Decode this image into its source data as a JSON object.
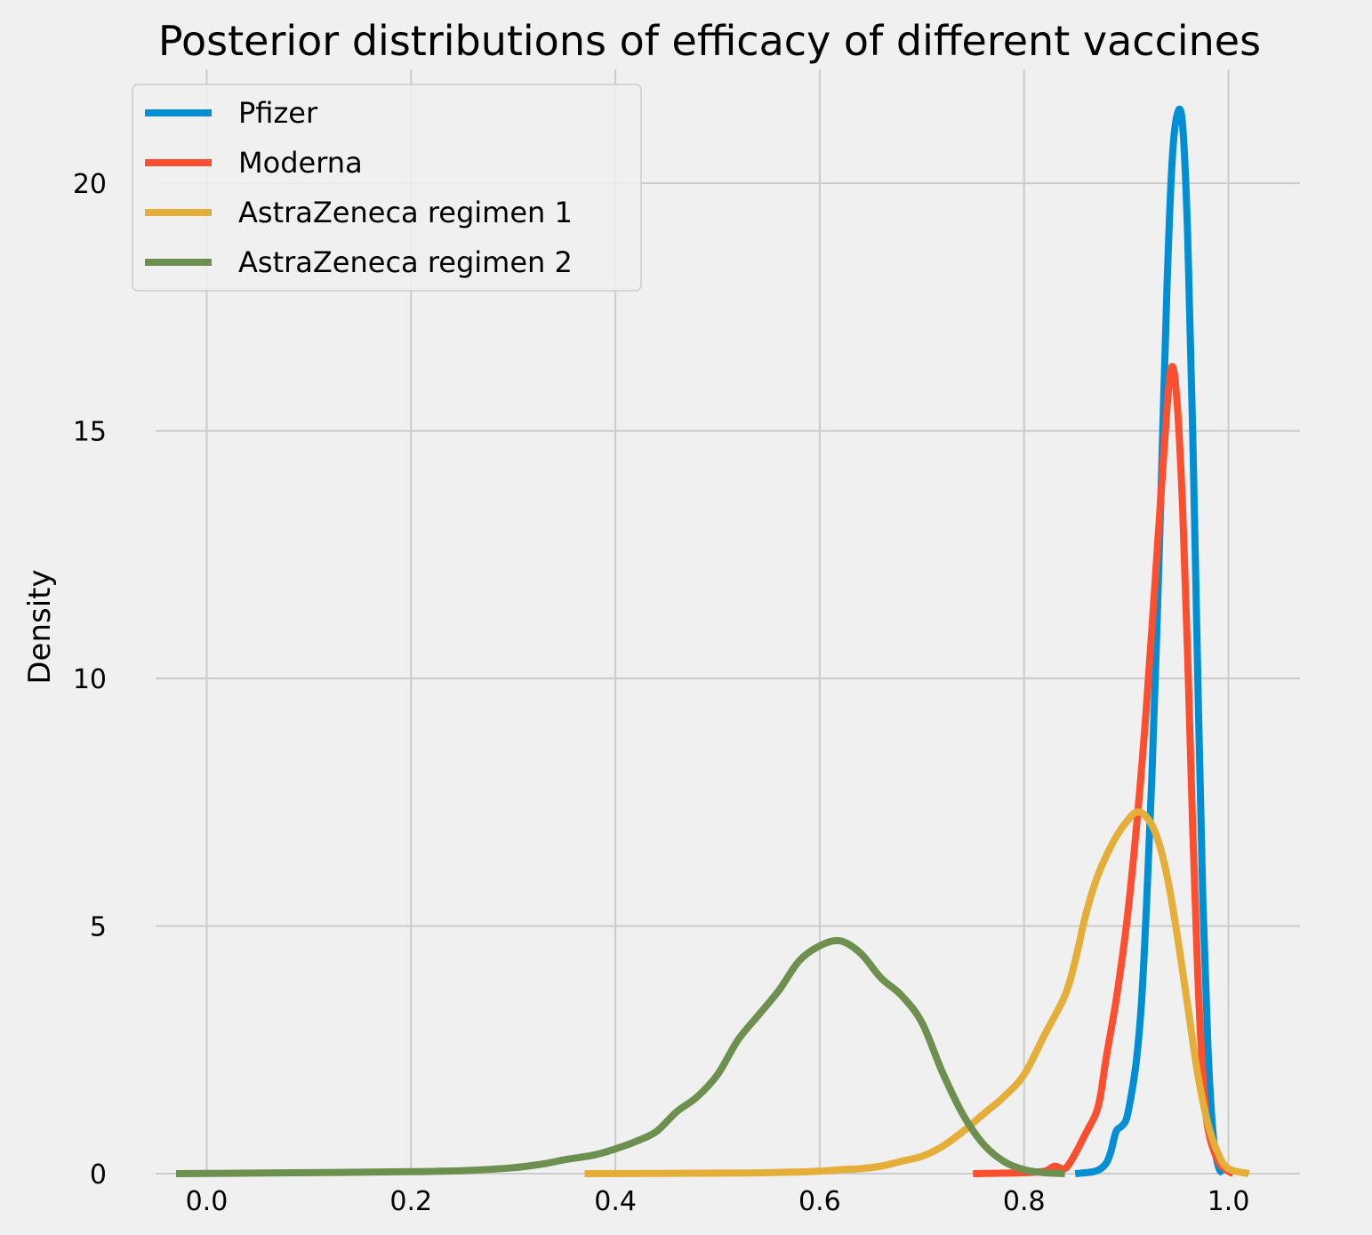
{
  "chart_data": {
    "type": "line",
    "title": "Posterior distributions of efficacy of different vaccines",
    "xlabel": "",
    "ylabel": "Density",
    "xlim": [
      -0.05,
      1.07
    ],
    "ylim": [
      0,
      22.3
    ],
    "xticks": [
      0.0,
      0.2,
      0.4,
      0.6,
      0.8,
      1.0
    ],
    "xtick_labels": [
      "0.0",
      "0.2",
      "0.4",
      "0.6",
      "0.8",
      "1.0"
    ],
    "yticks": [
      0,
      5,
      10,
      15,
      20
    ],
    "ytick_labels": [
      "0",
      "5",
      "10",
      "15",
      "20"
    ],
    "grid": true,
    "legend_position": "top-left",
    "series": [
      {
        "name": "Pfizer",
        "color": "#008fd5",
        "points": [
          [
            0.85,
            0
          ],
          [
            0.87,
            0.05
          ],
          [
            0.88,
            0.2
          ],
          [
            0.885,
            0.45
          ],
          [
            0.89,
            0.85
          ],
          [
            0.895,
            0.95
          ],
          [
            0.9,
            1.1
          ],
          [
            0.905,
            1.6
          ],
          [
            0.91,
            2.3
          ],
          [
            0.915,
            3.5
          ],
          [
            0.92,
            5.5
          ],
          [
            0.925,
            8.0
          ],
          [
            0.93,
            11.0
          ],
          [
            0.935,
            14.5
          ],
          [
            0.94,
            18.0
          ],
          [
            0.945,
            20.5
          ],
          [
            0.95,
            21.4
          ],
          [
            0.955,
            21.2
          ],
          [
            0.96,
            19.0
          ],
          [
            0.965,
            15.0
          ],
          [
            0.97,
            10.0
          ],
          [
            0.975,
            5.5
          ],
          [
            0.98,
            2.5
          ],
          [
            0.985,
            0.8
          ],
          [
            0.99,
            0.15
          ],
          [
            0.995,
            0
          ]
        ]
      },
      {
        "name": "Moderna",
        "color": "#fc4f30",
        "points": [
          [
            0.75,
            0
          ],
          [
            0.8,
            0.02
          ],
          [
            0.82,
            0.05
          ],
          [
            0.83,
            0.15
          ],
          [
            0.84,
            0.1
          ],
          [
            0.85,
            0.4
          ],
          [
            0.86,
            0.8
          ],
          [
            0.87,
            1.2
          ],
          [
            0.875,
            1.6
          ],
          [
            0.88,
            2.3
          ],
          [
            0.89,
            3.5
          ],
          [
            0.9,
            5.0
          ],
          [
            0.91,
            7.0
          ],
          [
            0.92,
            9.5
          ],
          [
            0.93,
            12.5
          ],
          [
            0.94,
            15.5
          ],
          [
            0.945,
            16.3
          ],
          [
            0.95,
            15.5
          ],
          [
            0.955,
            13.5
          ],
          [
            0.96,
            10.5
          ],
          [
            0.965,
            7.0
          ],
          [
            0.97,
            4.0
          ],
          [
            0.975,
            2.0
          ],
          [
            0.98,
            0.9
          ],
          [
            0.99,
            0.25
          ],
          [
            1.0,
            0.05
          ],
          [
            1.005,
            0
          ]
        ]
      },
      {
        "name": "AstraZeneca regimen 1",
        "color": "#e5ae38",
        "points": [
          [
            0.37,
            0
          ],
          [
            0.5,
            0.01
          ],
          [
            0.55,
            0.02
          ],
          [
            0.6,
            0.05
          ],
          [
            0.62,
            0.08
          ],
          [
            0.64,
            0.1
          ],
          [
            0.66,
            0.15
          ],
          [
            0.68,
            0.25
          ],
          [
            0.7,
            0.35
          ],
          [
            0.72,
            0.55
          ],
          [
            0.74,
            0.85
          ],
          [
            0.76,
            1.2
          ],
          [
            0.78,
            1.55
          ],
          [
            0.8,
            2.0
          ],
          [
            0.82,
            2.8
          ],
          [
            0.84,
            3.6
          ],
          [
            0.85,
            4.3
          ],
          [
            0.86,
            5.2
          ],
          [
            0.87,
            5.9
          ],
          [
            0.88,
            6.4
          ],
          [
            0.89,
            6.8
          ],
          [
            0.9,
            7.1
          ],
          [
            0.91,
            7.3
          ],
          [
            0.92,
            7.2
          ],
          [
            0.93,
            6.8
          ],
          [
            0.94,
            6.0
          ],
          [
            0.95,
            4.8
          ],
          [
            0.96,
            3.4
          ],
          [
            0.97,
            2.0
          ],
          [
            0.98,
            1.0
          ],
          [
            0.99,
            0.4
          ],
          [
            1.0,
            0.1
          ],
          [
            1.02,
            0
          ]
        ]
      },
      {
        "name": "AstraZeneca regimen 2",
        "color": "#6d904f",
        "points": [
          [
            -0.03,
            0
          ],
          [
            0.1,
            0.02
          ],
          [
            0.2,
            0.04
          ],
          [
            0.25,
            0.06
          ],
          [
            0.3,
            0.12
          ],
          [
            0.33,
            0.2
          ],
          [
            0.35,
            0.28
          ],
          [
            0.38,
            0.38
          ],
          [
            0.4,
            0.5
          ],
          [
            0.42,
            0.65
          ],
          [
            0.44,
            0.85
          ],
          [
            0.46,
            1.25
          ],
          [
            0.48,
            1.55
          ],
          [
            0.5,
            2.0
          ],
          [
            0.52,
            2.7
          ],
          [
            0.54,
            3.2
          ],
          [
            0.56,
            3.7
          ],
          [
            0.58,
            4.3
          ],
          [
            0.6,
            4.6
          ],
          [
            0.62,
            4.7
          ],
          [
            0.64,
            4.45
          ],
          [
            0.66,
            3.95
          ],
          [
            0.68,
            3.6
          ],
          [
            0.7,
            3.05
          ],
          [
            0.72,
            2.05
          ],
          [
            0.74,
            1.2
          ],
          [
            0.76,
            0.6
          ],
          [
            0.78,
            0.25
          ],
          [
            0.8,
            0.08
          ],
          [
            0.82,
            0.02
          ],
          [
            0.84,
            0
          ]
        ]
      }
    ]
  }
}
